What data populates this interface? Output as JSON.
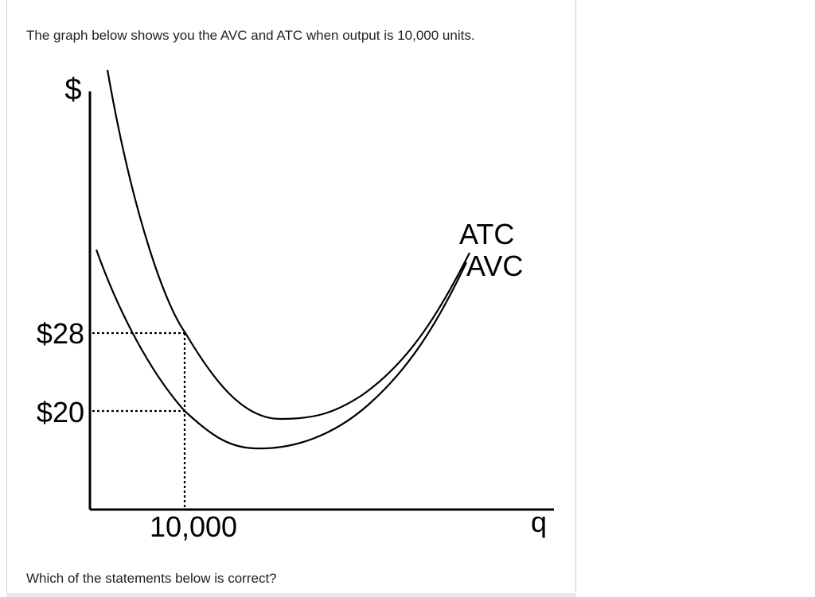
{
  "question": {
    "text": "The graph below shows you the AVC and ATC when output is 10,000 units.",
    "prompt": "Which of the statements below is correct?"
  },
  "chart_data": {
    "type": "line",
    "ylabel": "$",
    "xlabel": "q",
    "y_ticks": [
      {
        "value": 28,
        "label": "$28"
      },
      {
        "value": 20,
        "label": "$20"
      }
    ],
    "x_ticks": [
      {
        "value": 10000,
        "label": "10,000"
      }
    ],
    "series": [
      {
        "name": "ATC",
        "marked_point": {
          "x": 10000,
          "y": 28
        }
      },
      {
        "name": "AVC",
        "marked_point": {
          "x": 10000,
          "y": 20
        }
      }
    ],
    "guides": "dotted"
  }
}
